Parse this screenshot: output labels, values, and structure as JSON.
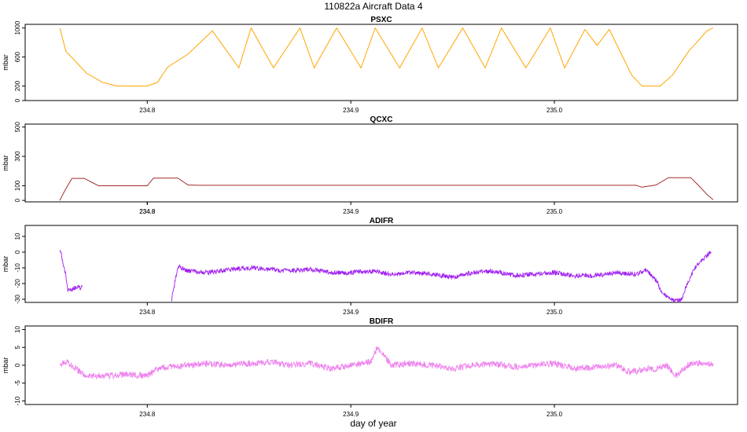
{
  "figure": {
    "title": "110822a   Aircraft Data 4",
    "xlabel": "day of year"
  },
  "chart_data": [
    {
      "type": "line",
      "title": "PSXC",
      "ylabel": "mbar",
      "color": "#FFA500",
      "xlim": [
        234.74,
        235.09
      ],
      "ylim": [
        0,
        1050
      ],
      "x_ticks": [
        "234.8",
        "234.9",
        "235.0"
      ],
      "y_ticks": [
        "0",
        "200",
        "600",
        "1000"
      ],
      "series": [
        {
          "x": [
            234.757,
            234.76,
            234.77,
            234.778,
            234.785,
            234.8,
            234.805,
            234.81,
            234.82,
            234.832,
            234.845,
            234.851,
            234.862,
            234.875,
            234.882,
            234.893,
            234.905,
            234.912,
            234.924,
            234.935,
            234.943,
            234.955,
            234.966,
            234.974,
            234.986,
            234.998,
            235.005,
            235.015,
            235.021,
            235.027,
            235.038,
            235.043,
            235.052,
            235.058,
            235.066,
            235.075,
            235.078
          ],
          "y": [
            1000,
            680,
            380,
            250,
            200,
            200,
            250,
            460,
            640,
            960,
            450,
            1000,
            450,
            1000,
            450,
            1000,
            450,
            1000,
            450,
            1000,
            450,
            1000,
            450,
            1000,
            450,
            1000,
            450,
            980,
            760,
            980,
            350,
            200,
            200,
            350,
            680,
            960,
            1000
          ]
        }
      ]
    },
    {
      "type": "line",
      "title": "QCXC",
      "ylabel": "mbar",
      "color": "#A52A2A",
      "xlim": [
        234.74,
        235.09
      ],
      "ylim": [
        -10,
        520
      ],
      "x_ticks": [
        "234.8",
        "234.8",
        "234.9",
        "235.0"
      ],
      "y_ticks": [
        "0",
        "100",
        "300",
        "500"
      ],
      "series": [
        {
          "x": [
            234.757,
            234.76,
            234.763,
            234.769,
            234.776,
            234.8,
            234.803,
            234.815,
            234.82,
            234.825,
            235.04,
            235.043,
            235.05,
            235.056,
            235.067,
            235.071,
            235.075,
            235.078
          ],
          "y": [
            0,
            80,
            150,
            150,
            100,
            100,
            152,
            152,
            105,
            103,
            103,
            90,
            105,
            155,
            155,
            100,
            40,
            5
          ]
        }
      ]
    },
    {
      "type": "line",
      "title": "ADIFR",
      "ylabel": "mbar",
      "color": "#A020F0",
      "xlim": [
        234.74,
        235.09
      ],
      "ylim": [
        -32,
        17
      ],
      "x_ticks": [
        "234.8",
        "234.9",
        "235.0"
      ],
      "y_ticks": [
        "-30",
        "-20",
        "-10",
        "0",
        "10"
      ],
      "series": [
        {
          "x": [
            234.757,
            234.758,
            234.759,
            234.76,
            234.761,
            234.763,
            234.765,
            234.767,
            234.768
          ],
          "y": [
            2,
            -3,
            -9,
            -15,
            -24,
            -24,
            -22,
            -23,
            -22
          ]
        },
        {
          "x": [
            234.812,
            234.815,
            234.82,
            234.83,
            234.84,
            234.85,
            234.86,
            234.87,
            234.88,
            234.89,
            234.9,
            234.91,
            234.92,
            234.93,
            234.94,
            234.95,
            234.96,
            234.97,
            234.98,
            234.99,
            235.0,
            235.01,
            235.02,
            235.03,
            235.04,
            235.045,
            235.05,
            235.053,
            235.057,
            235.062,
            235.066,
            235.07,
            235.074,
            235.077
          ],
          "y": [
            -30,
            -9,
            -12,
            -13,
            -11,
            -10,
            -11,
            -12,
            -11,
            -13,
            -13,
            -12,
            -14,
            -13,
            -14,
            -16,
            -13,
            -12,
            -15,
            -14,
            -13,
            -15,
            -15,
            -13,
            -14,
            -11,
            -18,
            -26,
            -30,
            -31,
            -18,
            -8,
            -3,
            0
          ]
        }
      ]
    },
    {
      "type": "line",
      "title": "BDIFR",
      "ylabel": "mbar",
      "color": "#EE82EE",
      "xlim": [
        234.74,
        235.09
      ],
      "ylim": [
        -11,
        11
      ],
      "x_ticks": [
        "234.8",
        "234.9",
        "235.0"
      ],
      "y_ticks": [
        "-10",
        "-5",
        "0",
        "5",
        "10"
      ],
      "series": [
        {
          "x": [
            234.757,
            234.76,
            234.765,
            234.77,
            234.775,
            234.78,
            234.79,
            234.8,
            234.805,
            234.81,
            234.82,
            234.83,
            234.84,
            234.85,
            234.86,
            234.87,
            234.88,
            234.89,
            234.9,
            234.91,
            234.913,
            234.92,
            234.93,
            234.94,
            234.95,
            234.96,
            234.97,
            234.98,
            234.99,
            235.0,
            235.01,
            235.02,
            235.03,
            235.037,
            235.045,
            235.05,
            235.055,
            235.06,
            235.065,
            235.07,
            235.078
          ],
          "y": [
            0,
            1,
            -1,
            -3,
            -3,
            -3,
            -2.5,
            -3,
            -1,
            -0.5,
            0,
            0.5,
            0,
            0.5,
            1,
            0,
            0.5,
            -1,
            0,
            1,
            5,
            0,
            0.5,
            0,
            -1,
            0,
            0.5,
            -0.5,
            0,
            0.5,
            -1,
            -0.5,
            0,
            -2,
            -1,
            -1,
            0,
            -3,
            0,
            0.5,
            0.5
          ]
        }
      ]
    }
  ]
}
